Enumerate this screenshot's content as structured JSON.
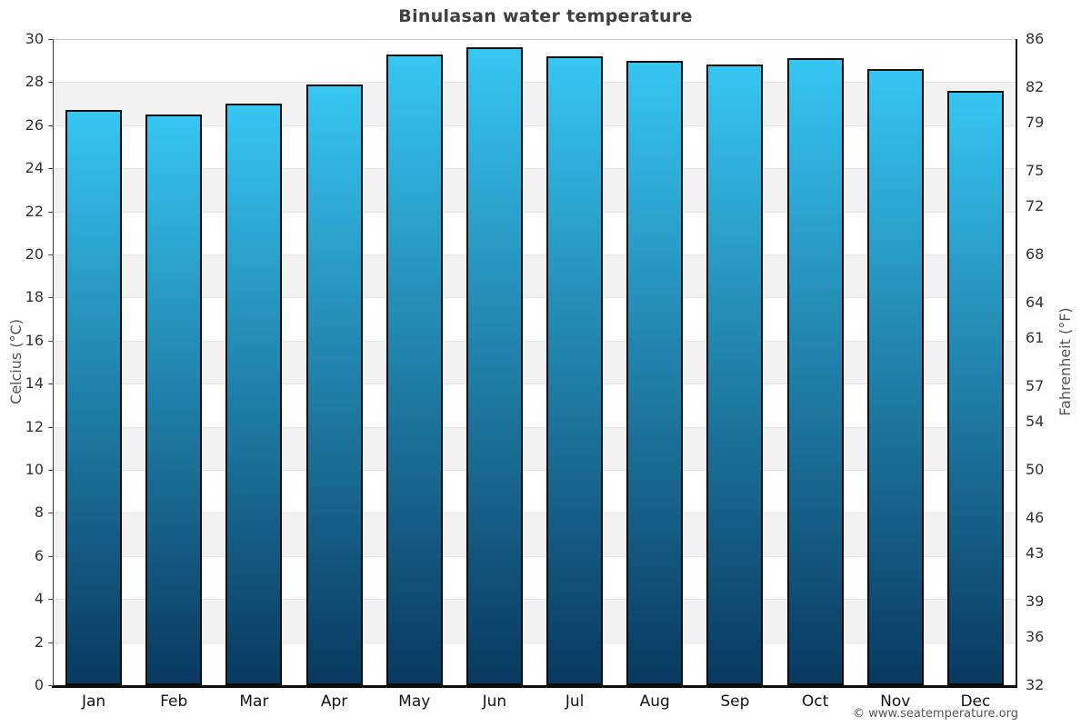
{
  "title": "Binulasan water temperature",
  "chart_data": {
    "type": "bar",
    "title": "Binulasan water temperature",
    "categories": [
      "Jan",
      "Feb",
      "Mar",
      "Apr",
      "May",
      "Jun",
      "Jul",
      "Aug",
      "Sep",
      "Oct",
      "Nov",
      "Dec"
    ],
    "values": [
      26.7,
      26.5,
      27.0,
      27.9,
      29.3,
      29.6,
      29.2,
      29.0,
      28.8,
      29.1,
      28.6,
      27.6
    ],
    "unit": "°C",
    "xlabel": "",
    "ylabel_left": "Celcius (°C)",
    "ylabel_right": "Fahrenheit (°F)",
    "ylim": [
      0,
      30
    ],
    "celsius_ticks": [
      30,
      28,
      26,
      24,
      22,
      20,
      18,
      16,
      14,
      12,
      10,
      8,
      6,
      4,
      2,
      0
    ],
    "fahrenheit_ticks": [
      86,
      82,
      79,
      75,
      72,
      68,
      64,
      61,
      57,
      54,
      50,
      46,
      43,
      39,
      36,
      32
    ],
    "grid": "alternating-horizontal-bands",
    "legend": "none"
  },
  "footer": {
    "copyright": "© www.seatemperature.org"
  },
  "colors": {
    "bar_top": "#36c6f2",
    "bar_bottom": "#09395f",
    "bar_border": "#0b0b0b",
    "band_gray": "#f2f2f2",
    "band_white": "#ffffff",
    "band_line": "#e4e4e4",
    "plot_top_line": "#cccccc",
    "title_text": "#404040",
    "tick_text": "#333333",
    "axis_label_text": "#555555",
    "month_text": "#141414",
    "copyright_text": "#555555",
    "axis_line": "#0d0d0d"
  }
}
